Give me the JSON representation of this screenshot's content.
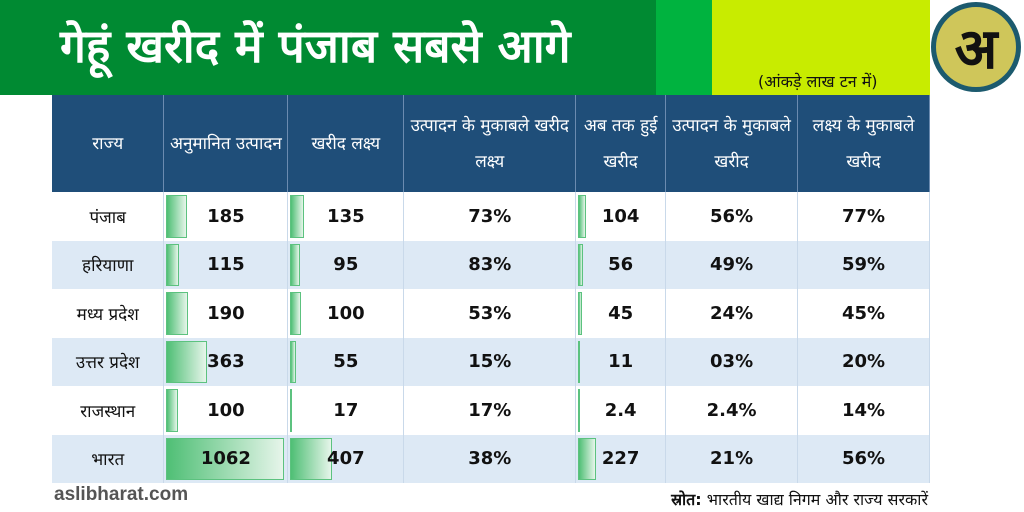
{
  "header": {
    "title": "गेहूं खरीद में पंजाब सबसे आगे",
    "unit_note": "(आंकड़े लाख टन में)",
    "logo_letter": "अ"
  },
  "table": {
    "columns": [
      "राज्य",
      "अनुमानित उत्पादन",
      "खरीद लक्ष्य",
      "उत्पादन के मुकाबले खरीद लक्ष्य",
      "अब तक हुई खरीद",
      "उत्पादन के मुकाबले खरीद",
      "लक्ष्य के मुकाबले खरीद"
    ],
    "rows": [
      [
        "पंजाब",
        "185",
        "135",
        "73%",
        "104",
        "56%",
        "77%"
      ],
      [
        "हरियाणा",
        "115",
        "95",
        "83%",
        "56",
        "49%",
        "59%"
      ],
      [
        "मध्य प्रदेश",
        "190",
        "100",
        "53%",
        "45",
        "24%",
        "45%"
      ],
      [
        "उत्तर प्रदेश",
        "363",
        "55",
        "15%",
        "11",
        "03%",
        "20%"
      ],
      [
        "राजस्थान",
        "100",
        "17",
        "17%",
        "2.4",
        "2.4%",
        "14%"
      ],
      [
        "भारत",
        "1062",
        "407",
        "38%",
        "227",
        "21%",
        "56%"
      ]
    ]
  },
  "footer": {
    "website": "aslibharat.com",
    "source_label": "स्रोत:",
    "source_text": "भारतीय खाद्य निगम और राज्य सरकारें"
  }
}
